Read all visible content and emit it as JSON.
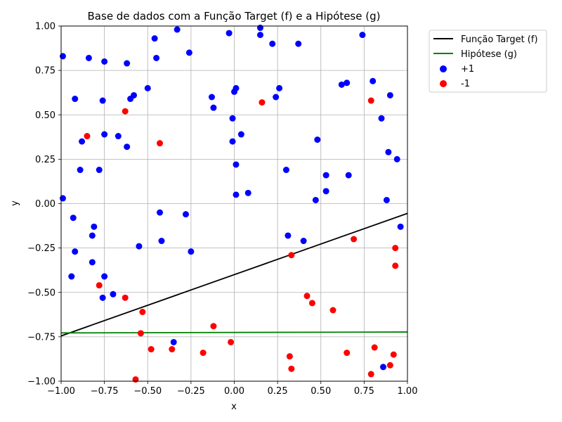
{
  "chart_data": {
    "type": "scatter",
    "title": "Base de dados com a Função Target (f) e a Hipótese (g)",
    "xlabel": "x",
    "ylabel": "y",
    "xlim": [
      -1.0,
      1.0
    ],
    "ylim": [
      -1.0,
      1.0
    ],
    "grid": true,
    "legend_position": "outside-top-right",
    "x_ticks": [
      -1.0,
      -0.75,
      -0.5,
      -0.25,
      0.0,
      0.25,
      0.5,
      0.75,
      1.0
    ],
    "x_tick_labels": [
      "−1.00",
      "−0.75",
      "−0.50",
      "−0.25",
      "0.00",
      "0.25",
      "0.50",
      "0.75",
      "1.00"
    ],
    "y_ticks": [
      -1.0,
      -0.75,
      -0.5,
      -0.25,
      0.0,
      0.25,
      0.5,
      0.75,
      1.0
    ],
    "y_tick_labels": [
      "−1.00",
      "−0.75",
      "−0.50",
      "−0.25",
      "0.00",
      "0.25",
      "0.50",
      "0.75",
      "1.00"
    ],
    "lines": [
      {
        "name": "Função Target (f)",
        "color": "#000000",
        "x": [
          -1.0,
          1.0
        ],
        "y": [
          -0.745,
          -0.055
        ]
      },
      {
        "name": "Hipótese (g)",
        "color": "#008000",
        "x": [
          -1.0,
          1.0
        ],
        "y": [
          -0.728,
          -0.723
        ]
      }
    ],
    "series": [
      {
        "name": "+1",
        "color": "#0000ff",
        "points": [
          [
            -0.99,
            0.83
          ],
          [
            -0.84,
            0.82
          ],
          [
            -0.75,
            0.8
          ],
          [
            -0.62,
            0.79
          ],
          [
            -0.46,
            0.93
          ],
          [
            -0.45,
            0.82
          ],
          [
            -0.33,
            0.98
          ],
          [
            -0.26,
            0.85
          ],
          [
            -0.03,
            0.96
          ],
          [
            0.15,
            0.95
          ],
          [
            0.15,
            0.99
          ],
          [
            0.22,
            0.9
          ],
          [
            0.37,
            0.9
          ],
          [
            0.74,
            0.95
          ],
          [
            -0.92,
            0.59
          ],
          [
            -0.76,
            0.58
          ],
          [
            -0.58,
            0.61
          ],
          [
            -0.6,
            0.59
          ],
          [
            -0.5,
            0.65
          ],
          [
            -0.13,
            0.6
          ],
          [
            0.0,
            0.63
          ],
          [
            0.01,
            0.65
          ],
          [
            0.26,
            0.65
          ],
          [
            0.24,
            0.6
          ],
          [
            0.62,
            0.67
          ],
          [
            0.65,
            0.68
          ],
          [
            0.8,
            0.69
          ],
          [
            0.9,
            0.61
          ],
          [
            -0.12,
            0.54
          ],
          [
            -0.01,
            0.48
          ],
          [
            0.85,
            0.48
          ],
          [
            -0.88,
            0.35
          ],
          [
            -0.75,
            0.39
          ],
          [
            -0.67,
            0.38
          ],
          [
            -0.62,
            0.32
          ],
          [
            -0.01,
            0.35
          ],
          [
            0.04,
            0.39
          ],
          [
            0.48,
            0.36
          ],
          [
            -0.89,
            0.19
          ],
          [
            -0.78,
            0.19
          ],
          [
            0.01,
            0.22
          ],
          [
            0.3,
            0.19
          ],
          [
            0.53,
            0.16
          ],
          [
            0.66,
            0.16
          ],
          [
            0.89,
            0.29
          ],
          [
            0.94,
            0.25
          ],
          [
            -0.99,
            0.03
          ],
          [
            0.01,
            0.05
          ],
          [
            0.08,
            0.06
          ],
          [
            0.47,
            0.02
          ],
          [
            0.53,
            0.07
          ],
          [
            0.88,
            0.02
          ],
          [
            -0.93,
            -0.08
          ],
          [
            -0.82,
            -0.18
          ],
          [
            -0.81,
            -0.13
          ],
          [
            -0.43,
            -0.05
          ],
          [
            -0.28,
            -0.06
          ],
          [
            -0.92,
            -0.27
          ],
          [
            -0.82,
            -0.33
          ],
          [
            -0.55,
            -0.24
          ],
          [
            -0.42,
            -0.21
          ],
          [
            -0.25,
            -0.27
          ],
          [
            0.31,
            -0.18
          ],
          [
            0.4,
            -0.21
          ],
          [
            0.96,
            -0.13
          ],
          [
            -0.94,
            -0.41
          ],
          [
            -0.75,
            -0.41
          ],
          [
            -0.76,
            -0.53
          ],
          [
            -0.7,
            -0.51
          ],
          [
            -0.35,
            -0.78
          ],
          [
            0.86,
            -0.92
          ]
        ]
      },
      {
        "name": "-1",
        "color": "#ff0000",
        "points": [
          [
            -0.63,
            0.52
          ],
          [
            0.16,
            0.57
          ],
          [
            0.79,
            0.58
          ],
          [
            -0.85,
            0.38
          ],
          [
            -0.43,
            0.34
          ],
          [
            0.69,
            -0.2
          ],
          [
            0.33,
            -0.29
          ],
          [
            0.93,
            -0.25
          ],
          [
            0.93,
            -0.35
          ],
          [
            -0.78,
            -0.46
          ],
          [
            -0.63,
            -0.53
          ],
          [
            -0.53,
            -0.61
          ],
          [
            0.42,
            -0.52
          ],
          [
            0.45,
            -0.56
          ],
          [
            0.57,
            -0.6
          ],
          [
            -0.54,
            -0.73
          ],
          [
            -0.12,
            -0.69
          ],
          [
            -0.48,
            -0.82
          ],
          [
            -0.36,
            -0.82
          ],
          [
            -0.18,
            -0.84
          ],
          [
            -0.02,
            -0.78
          ],
          [
            0.32,
            -0.86
          ],
          [
            0.33,
            -0.93
          ],
          [
            0.65,
            -0.84
          ],
          [
            0.81,
            -0.81
          ],
          [
            0.92,
            -0.85
          ],
          [
            0.9,
            -0.91
          ],
          [
            0.79,
            -0.96
          ],
          [
            -0.57,
            -0.99
          ]
        ]
      }
    ]
  }
}
